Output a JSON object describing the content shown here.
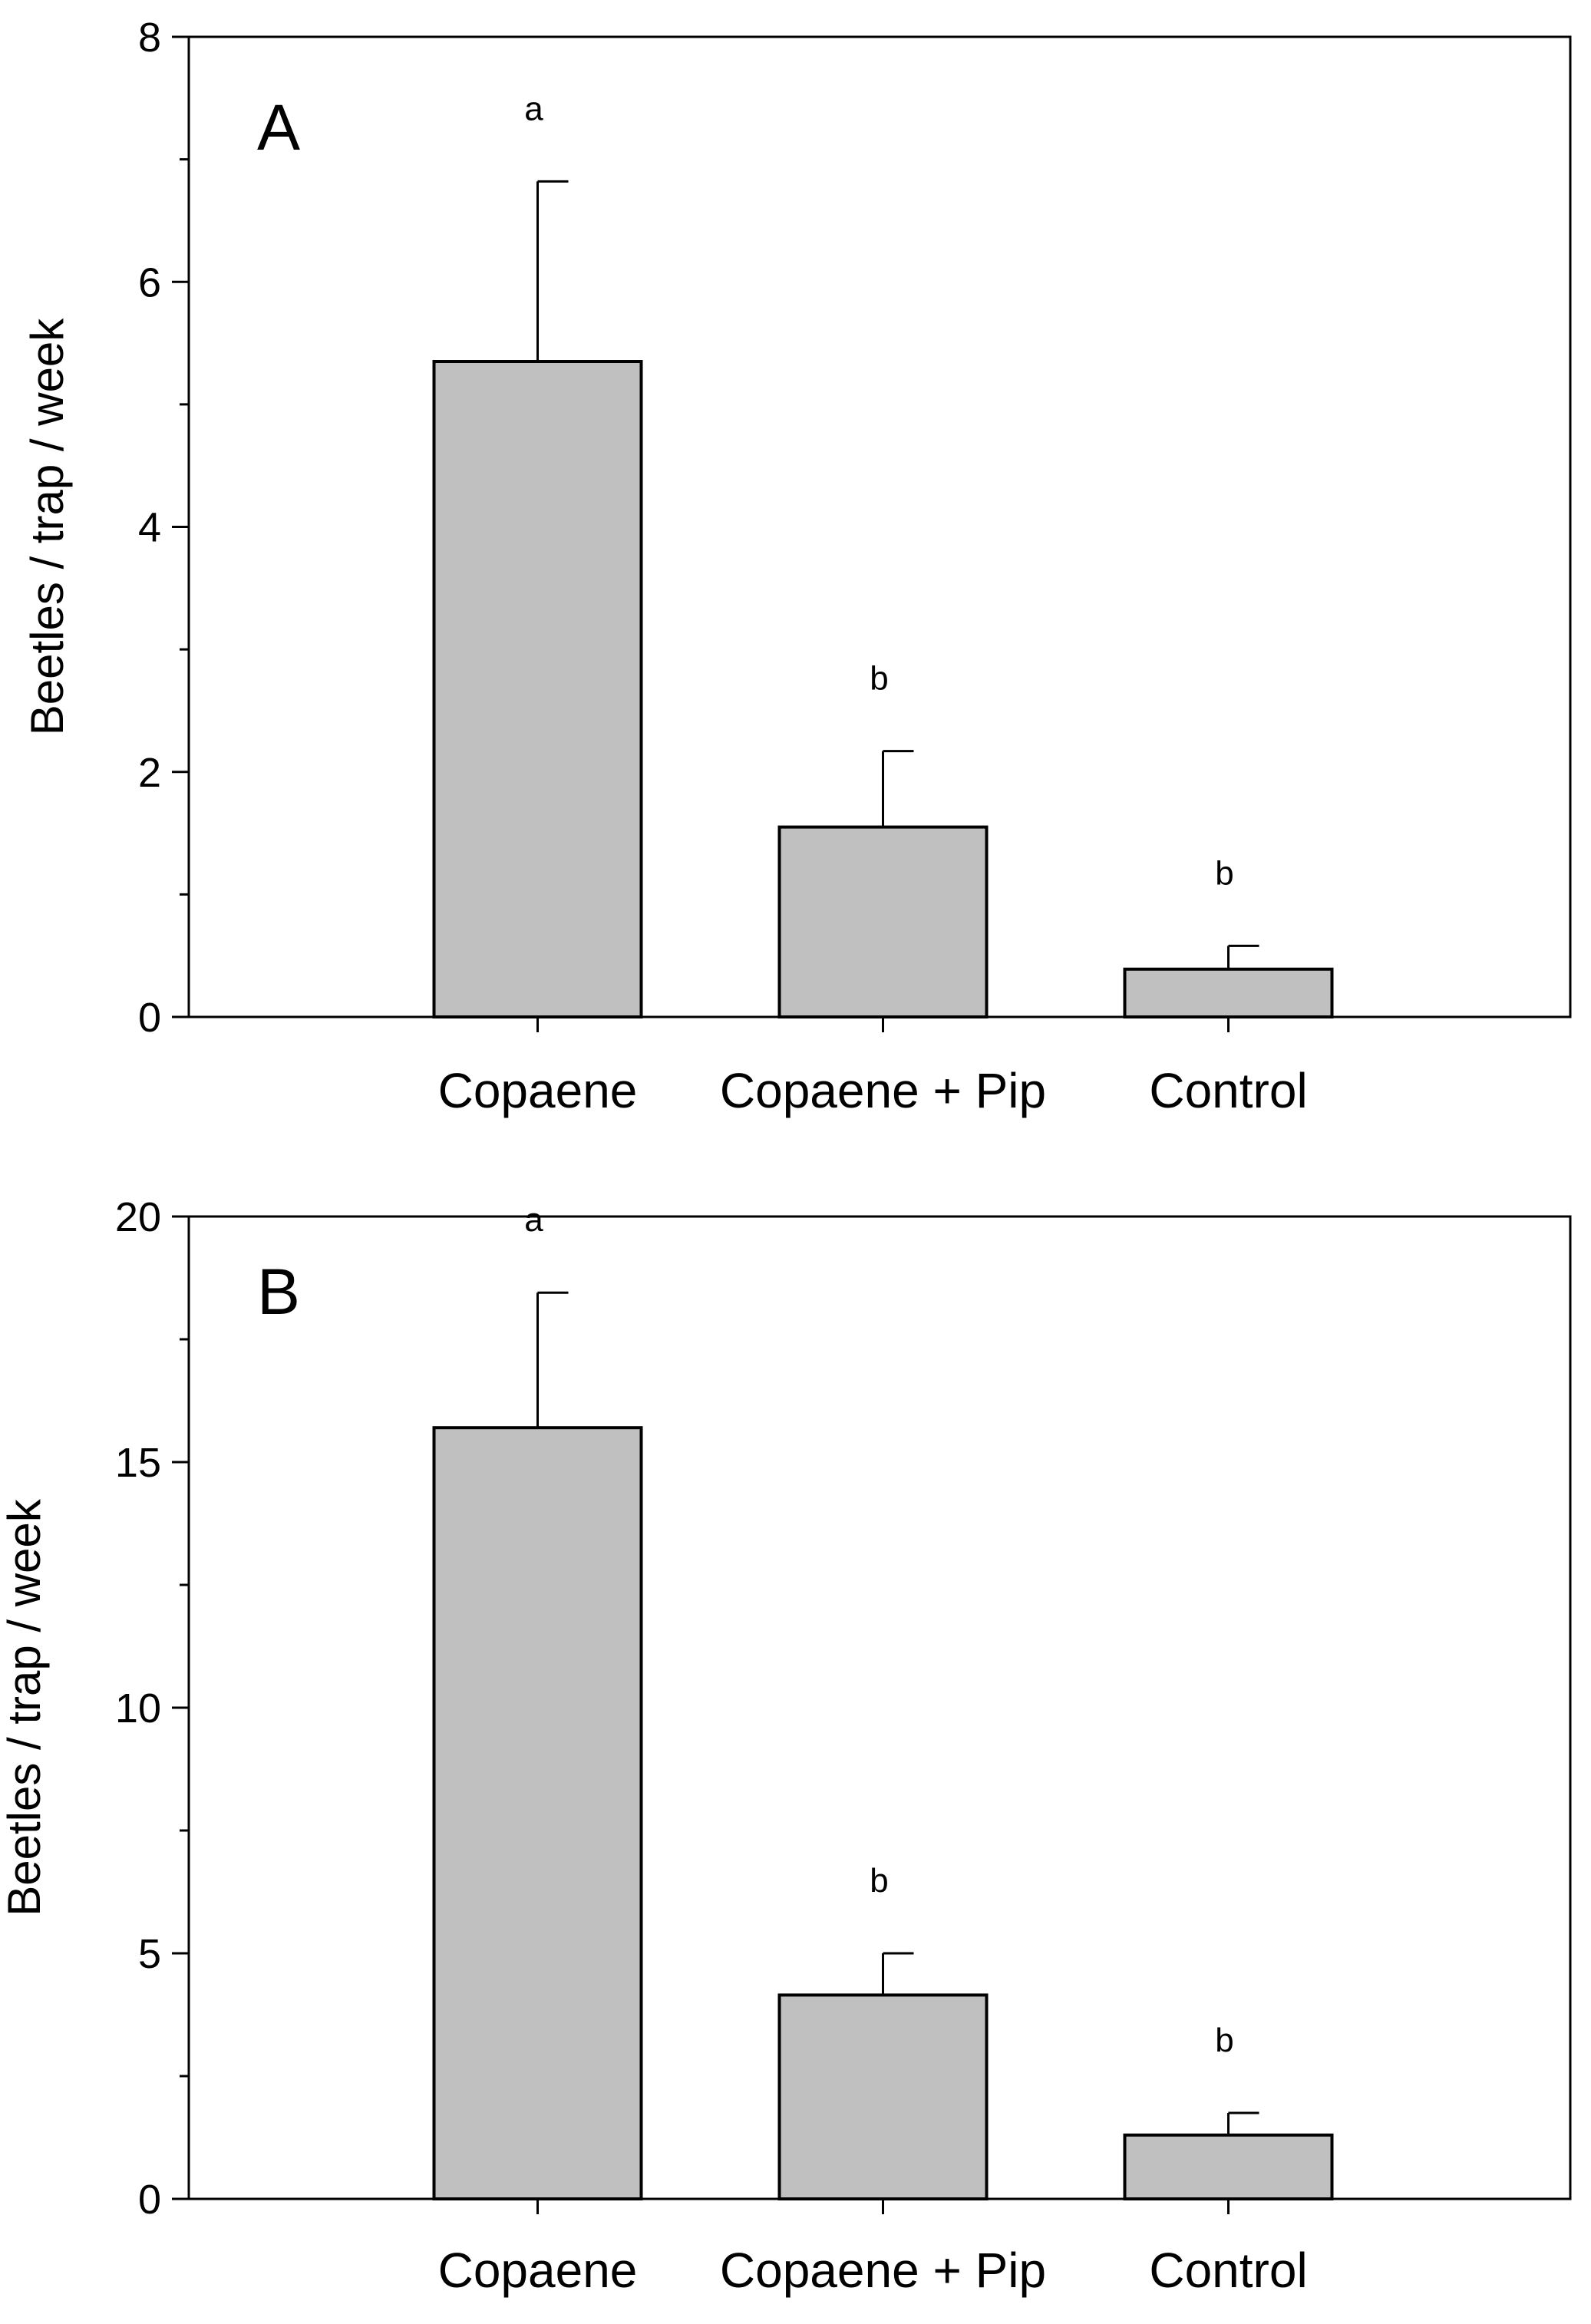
{
  "chart_data": [
    {
      "type": "bar",
      "panel_label": "A",
      "categories": [
        "Copaene",
        "Copaene + Pip",
        "Control"
      ],
      "values": [
        5.35,
        1.55,
        0.39
      ],
      "errors": [
        1.47,
        0.62,
        0.19
      ],
      "significance": [
        "a",
        "b",
        "b"
      ],
      "ylabel": "Beetles / trap / week",
      "xlabel": "",
      "ylim": [
        0,
        8
      ],
      "yticks": [
        0,
        2,
        4,
        6,
        8
      ],
      "yticks_minor": [
        1,
        3,
        5,
        7
      ],
      "ytick_labels": [
        "0",
        "2",
        "4",
        "6",
        "8"
      ],
      "bar_color": "#c0c0c0"
    },
    {
      "type": "bar",
      "panel_label": "B",
      "categories": [
        "Copaene",
        "Copaene + Pip",
        "Control"
      ],
      "values": [
        15.7,
        4.15,
        1.3
      ],
      "errors": [
        2.75,
        0.85,
        0.45
      ],
      "significance": [
        "a",
        "b",
        "b"
      ],
      "ylabel": "Beetles / trap / week",
      "xlabel": "",
      "ylim": [
        0,
        20
      ],
      "yticks": [
        0,
        5,
        10,
        15,
        20
      ],
      "yticks_minor": [
        2.5,
        7.5,
        12.5,
        17.5
      ],
      "ytick_labels": [
        "0",
        "5",
        "10",
        "15",
        "20"
      ],
      "bar_color": "#c0c0c0"
    }
  ]
}
